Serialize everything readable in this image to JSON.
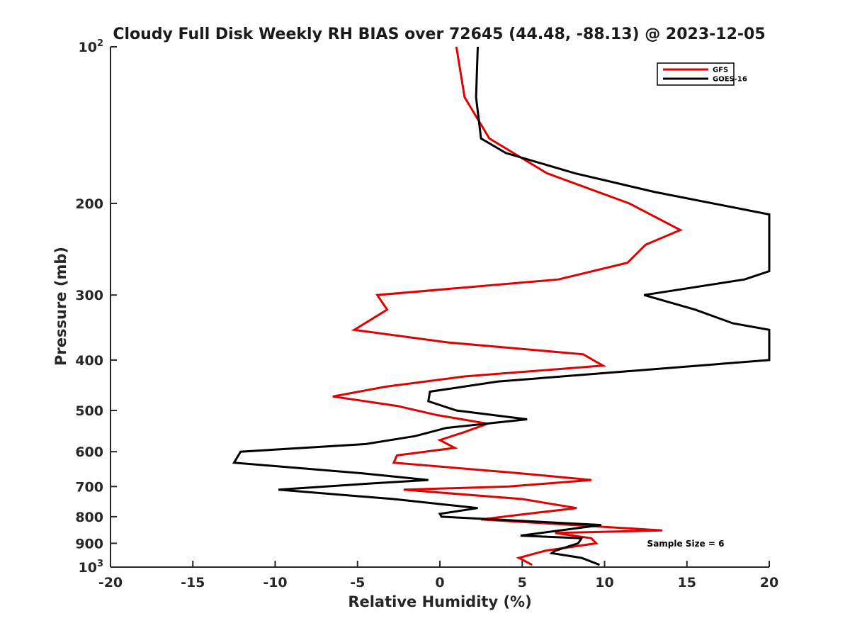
{
  "chart_data": {
    "type": "line",
    "title": "Cloudy Full Disk Weekly RH BIAS over 72645 (44.48, -88.13) @ 2023-12-05",
    "xlabel": "Relative Humidity (%)",
    "ylabel": "Pressure (mb)",
    "xlim": [
      -20,
      20
    ],
    "ylim": [
      1000,
      100
    ],
    "yscale": "log",
    "xticks": [
      -20,
      -15,
      -10,
      -5,
      0,
      5,
      10,
      15,
      20
    ],
    "yticks": [
      {
        "value": 100,
        "label": "10",
        "sup": "2"
      },
      {
        "value": 200,
        "label": "200"
      },
      {
        "value": 300,
        "label": "300"
      },
      {
        "value": 400,
        "label": "400"
      },
      {
        "value": 500,
        "label": "500"
      },
      {
        "value": 600,
        "label": "600"
      },
      {
        "value": 700,
        "label": "700"
      },
      {
        "value": 800,
        "label": "800"
      },
      {
        "value": 900,
        "label": "900"
      },
      {
        "value": 1000,
        "label": "10",
        "sup": "3"
      }
    ],
    "grid": false,
    "legend_position": "top-right",
    "annotation": "Sample Size = 6",
    "series": [
      {
        "name": "GFS",
        "color": "#e00000",
        "points": [
          [
            1.0,
            100
          ],
          [
            1.5,
            125
          ],
          [
            3.0,
            150
          ],
          [
            6.5,
            175
          ],
          [
            11.5,
            200
          ],
          [
            14.6,
            225
          ],
          [
            12.5,
            240
          ],
          [
            11.4,
            260
          ],
          [
            7.2,
            280
          ],
          [
            -3.8,
            300
          ],
          [
            -3.2,
            320
          ],
          [
            -5.2,
            350
          ],
          [
            0.5,
            370
          ],
          [
            8.7,
            390
          ],
          [
            9.9,
            410
          ],
          [
            1.5,
            430
          ],
          [
            -3.3,
            450
          ],
          [
            -6.5,
            470
          ],
          [
            -2.6,
            490
          ],
          [
            -0.2,
            510
          ],
          [
            2.9,
            530
          ],
          [
            1.5,
            550
          ],
          [
            0.0,
            570
          ],
          [
            0.9,
            590
          ],
          [
            -2.6,
            610
          ],
          [
            -2.8,
            630
          ],
          [
            4.8,
            660
          ],
          [
            9.2,
            680
          ],
          [
            4.2,
            700
          ],
          [
            -2.2,
            710
          ],
          [
            5.0,
            740
          ],
          [
            8.3,
            770
          ],
          [
            5.3,
            790
          ],
          [
            2.5,
            810
          ],
          [
            13.5,
            850
          ],
          [
            7.0,
            860
          ],
          [
            9.2,
            880
          ],
          [
            9.5,
            900
          ],
          [
            6.4,
            930
          ],
          [
            4.8,
            960
          ],
          [
            5.6,
            990
          ]
        ]
      },
      {
        "name": "GOES-16",
        "color": "#000000",
        "points": [
          [
            2.3,
            100
          ],
          [
            2.2,
            125
          ],
          [
            2.5,
            150
          ],
          [
            4.0,
            160
          ],
          [
            8.2,
            175
          ],
          [
            13.0,
            190
          ],
          [
            20.0,
            210
          ],
          [
            20.0,
            270
          ],
          [
            18.5,
            280
          ],
          [
            12.4,
            300
          ],
          [
            15.5,
            320
          ],
          [
            17.8,
            340
          ],
          [
            20.0,
            350
          ],
          [
            20.0,
            400
          ],
          [
            11.5,
            420
          ],
          [
            3.5,
            440
          ],
          [
            -0.6,
            460
          ],
          [
            -0.7,
            480
          ],
          [
            1.0,
            500
          ],
          [
            5.3,
            520
          ],
          [
            0.4,
            540
          ],
          [
            -1.5,
            560
          ],
          [
            -4.5,
            580
          ],
          [
            -12.1,
            600
          ],
          [
            -12.5,
            630
          ],
          [
            -4.8,
            660
          ],
          [
            -0.7,
            680
          ],
          [
            -4.0,
            690
          ],
          [
            -9.8,
            710
          ],
          [
            -2.8,
            740
          ],
          [
            2.3,
            770
          ],
          [
            0.0,
            790
          ],
          [
            0.1,
            800
          ],
          [
            9.8,
            830
          ],
          [
            4.9,
            870
          ],
          [
            8.6,
            880
          ],
          [
            8.4,
            900
          ],
          [
            7.0,
            930
          ],
          [
            6.8,
            940
          ],
          [
            8.6,
            960
          ],
          [
            9.7,
            990
          ]
        ]
      }
    ]
  }
}
